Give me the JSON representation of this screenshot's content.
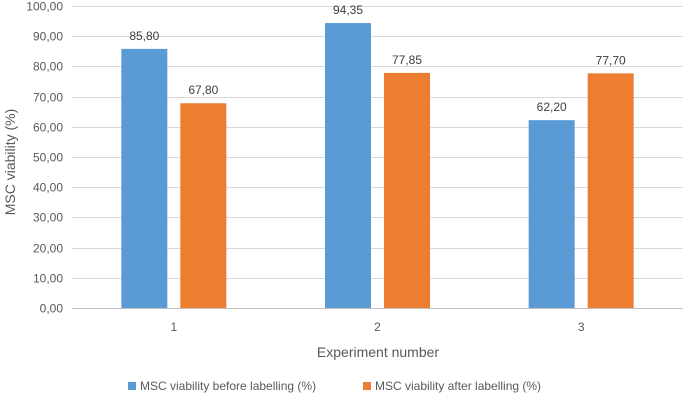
{
  "chart_data": {
    "type": "bar",
    "categories": [
      "1",
      "2",
      "3"
    ],
    "series": [
      {
        "name": "MSC viability before labelling (%)",
        "color": "#5b9bd5",
        "values": [
          85.8,
          94.35,
          62.2
        ],
        "labels": [
          "85,80",
          "94,35",
          "62,20"
        ]
      },
      {
        "name": "MSC viability after labelling (%)",
        "color": "#ed7d31",
        "values": [
          67.8,
          77.85,
          77.7
        ],
        "labels": [
          "67,80",
          "77,85",
          "77,70"
        ]
      }
    ],
    "xlabel": "Experiment number",
    "ylabel": "MSC viability (%)",
    "ylim": [
      0,
      100
    ],
    "yticks": [
      0,
      10,
      20,
      30,
      40,
      50,
      60,
      70,
      80,
      90,
      100
    ],
    "ytick_labels": [
      "0,00",
      "10,00",
      "20,00",
      "30,00",
      "40,00",
      "50,00",
      "60,00",
      "70,00",
      "80,00",
      "90,00",
      "100,00"
    ],
    "grid": true,
    "legend": "bottom"
  }
}
